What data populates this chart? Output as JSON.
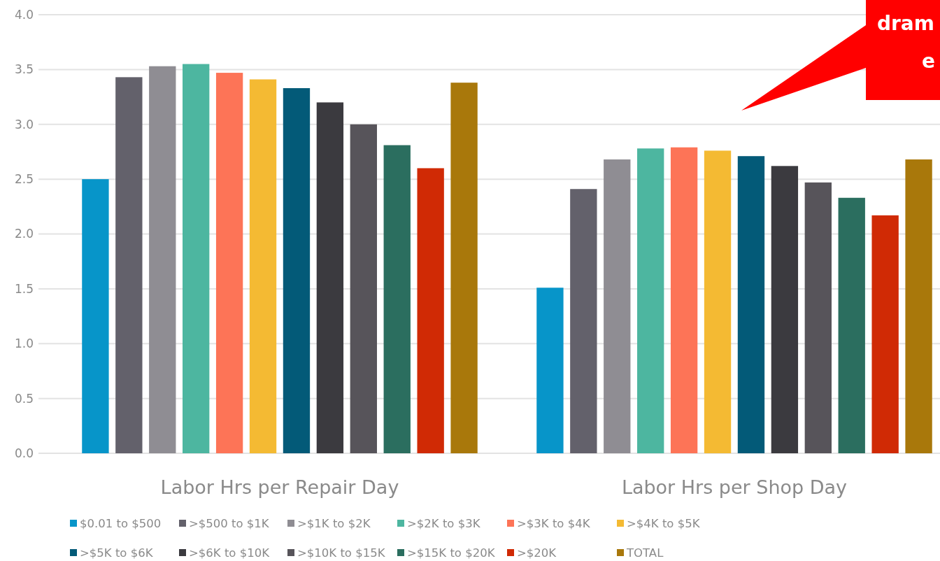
{
  "chart_data": {
    "type": "bar",
    "categories": [
      "Labor Hrs per Repair Day",
      "Labor Hrs per Shop Day"
    ],
    "ylim": [
      0,
      4
    ],
    "yticks": [
      {
        "value": 0,
        "label": "0.0"
      },
      {
        "value": 0.5,
        "label": "0.5"
      },
      {
        "value": 1,
        "label": "1.0"
      },
      {
        "value": 1.5,
        "label": "1.5"
      },
      {
        "value": 2,
        "label": "2.0"
      },
      {
        "value": 2.5,
        "label": "2.5"
      },
      {
        "value": 3,
        "label": "3.0"
      },
      {
        "value": 3.5,
        "label": "3.5"
      },
      {
        "value": 4,
        "label": "4.0"
      }
    ],
    "grid": "y",
    "legend": "bottom",
    "annotations": [
      "dram",
      "e"
    ],
    "series": [
      {
        "name": "$0.01 to $500",
        "color": "#0795c9",
        "values": [
          2.5,
          1.51
        ]
      },
      {
        "name": ">$500 to $1K",
        "color": "#63616b",
        "values": [
          3.43,
          2.41
        ]
      },
      {
        "name": ">$1K to $2K",
        "color": "#8f8d93",
        "values": [
          3.53,
          2.68
        ]
      },
      {
        "name": ">$2K to $3K",
        "color": "#4db6a0",
        "values": [
          3.55,
          2.78
        ]
      },
      {
        "name": ">$3K to $4K",
        "color": "#fd7457",
        "values": [
          3.47,
          2.79
        ]
      },
      {
        "name": ">$4K to $5K",
        "color": "#f4ba33",
        "values": [
          3.41,
          2.76
        ]
      },
      {
        "name": ">$5K to $6K",
        "color": "#035a78",
        "values": [
          3.33,
          2.71
        ]
      },
      {
        "name": ">$6K to $10K",
        "color": "#3b3a3f",
        "values": [
          3.2,
          2.62
        ]
      },
      {
        "name": ">$10K to $15K",
        "color": "#57545a",
        "values": [
          3.0,
          2.47
        ]
      },
      {
        "name": ">$15K to $20K",
        "color": "#2b6e5f",
        "values": [
          2.81,
          2.33
        ]
      },
      {
        "name": ">$20K",
        "color": "#d02a05",
        "values": [
          2.6,
          2.17
        ]
      },
      {
        "name": "TOTAL",
        "color": "#a9780b",
        "values": [
          3.38,
          2.68
        ]
      }
    ]
  }
}
